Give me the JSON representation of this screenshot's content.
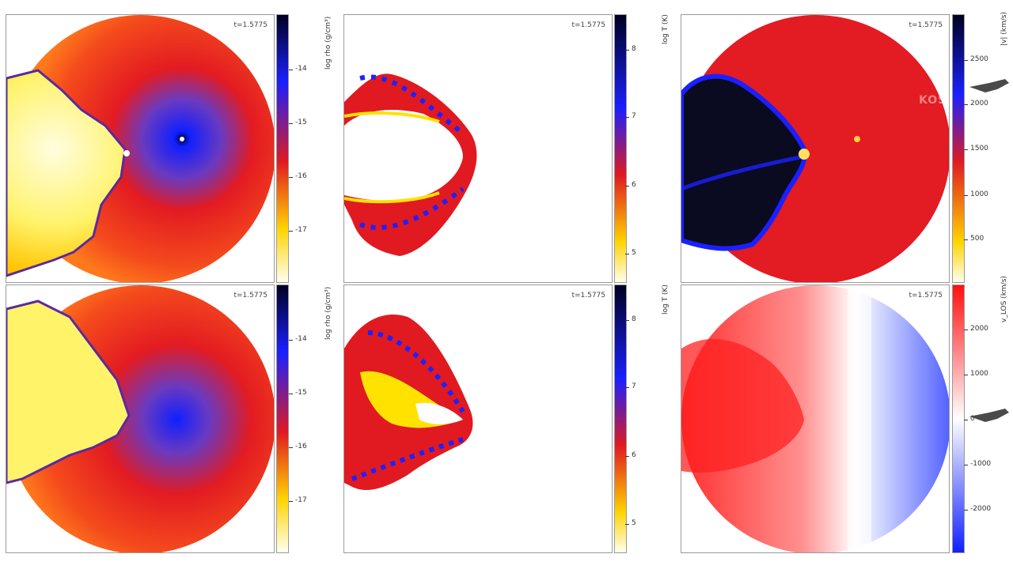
{
  "time_label": "t=1.5775",
  "rows": [
    {
      "density": {
        "label": "log rho (g/cm³)",
        "ticks": [
          "-14",
          "-15",
          "-16",
          "-17"
        ]
      },
      "temperature": {
        "label": "log T (K)",
        "ticks": [
          "8",
          "7",
          "6",
          "5"
        ]
      },
      "velocity": {
        "label": "|v| (km/s)",
        "ticks": [
          "2500",
          "2000",
          "1500",
          "1000",
          "500"
        ]
      }
    },
    {
      "density": {
        "label": "log rho (g/cm³)",
        "ticks": [
          "-14",
          "-15",
          "-16",
          "-17"
        ]
      },
      "temperature": {
        "label": "log T (K)",
        "ticks": [
          "8",
          "7",
          "6",
          "5"
        ]
      },
      "velocity": {
        "label": "v_LOS (km/s)",
        "ticks": [
          "2000",
          "1000",
          "0",
          "-1000",
          "-2000"
        ]
      }
    }
  ],
  "watermark": "KOSM",
  "colors": {
    "density_scale": [
      "#0a0a2a",
      "#1020ff",
      "#7030b0",
      "#e01020",
      "#ff6010",
      "#ffd000",
      "#ffffc0"
    ],
    "diverging_scale": [
      "#ff1010",
      "#ffffff",
      "#1020ff"
    ]
  }
}
